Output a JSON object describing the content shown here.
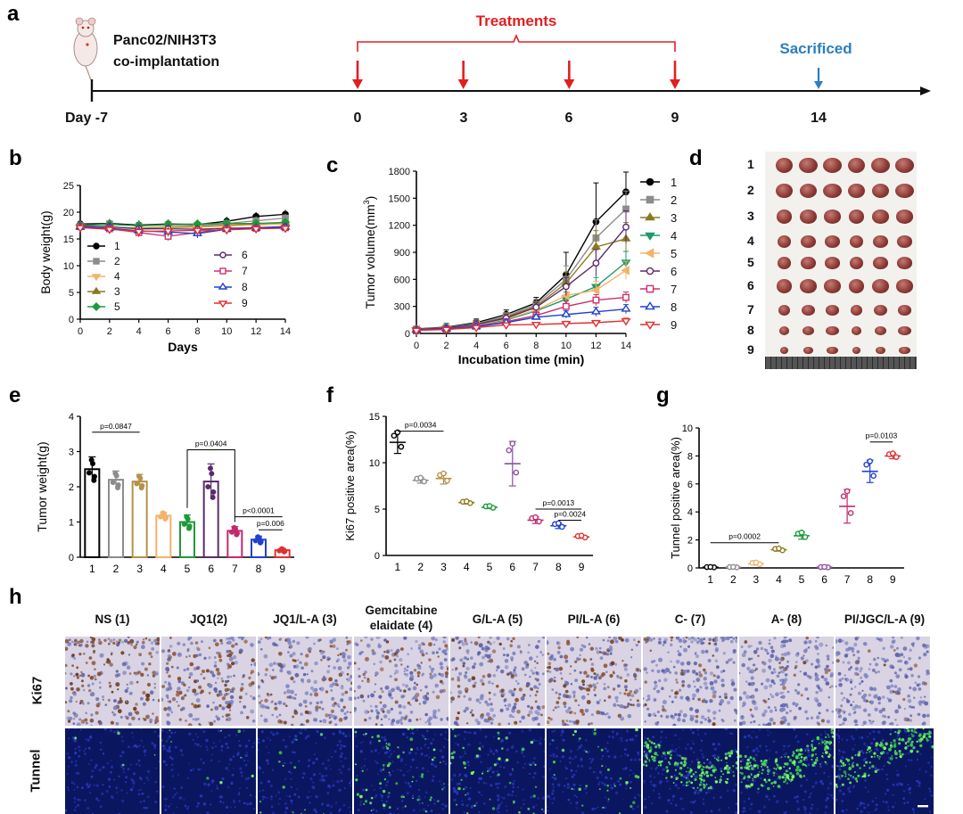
{
  "panels": {
    "a": {
      "label": "a",
      "model_text_1": "Panc02/NIH3T3",
      "model_text_2": "co-implantation",
      "treatments": "Treatments",
      "sacrificed": "Sacrificed",
      "ticks": [
        "Day -7",
        "0",
        "3",
        "6",
        "9",
        "14"
      ],
      "treatment_days": [
        0,
        3,
        6,
        9
      ],
      "sacrifice_day": 14,
      "colors": {
        "treatment": "#e02020",
        "sacrifice": "#2a7fc0",
        "axis": "#111111"
      }
    },
    "b": {
      "label": "b"
    },
    "c": {
      "label": "c"
    },
    "d": {
      "label": "d",
      "rows": [
        "1",
        "2",
        "3",
        "4",
        "5",
        "6",
        "7",
        "8",
        "9"
      ],
      "tumor_size_scale": [
        1.0,
        0.95,
        0.9,
        0.8,
        0.78,
        0.9,
        0.7,
        0.62,
        0.52
      ],
      "tumors_per_row": 6
    },
    "e": {
      "label": "e"
    },
    "f": {
      "label": "f"
    },
    "g": {
      "label": "g"
    },
    "h": {
      "label": "h",
      "columns": [
        "NS (1)",
        "JQ1(2)",
        "JQ1/L-A (3)",
        "Gemcitabine elaidate (4)",
        "G/L-A (5)",
        "PI/L-A (6)",
        "C- (7)",
        "A- (8)",
        "PI/JGC/L-A (9)"
      ],
      "col4_line1": "Gemcitabine",
      "col4_line2": "elaidate (4)",
      "rows": [
        "Ki67",
        "Tunnel"
      ],
      "ki67_brown_density": [
        0.55,
        0.45,
        0.3,
        0.25,
        0.3,
        0.45,
        0.15,
        0.12,
        0.05
      ],
      "tunnel_green_density": [
        0.01,
        0.02,
        0.03,
        0.15,
        0.12,
        0.08,
        0.45,
        0.5,
        0.4
      ]
    }
  },
  "chart_data": [
    {
      "id": "b",
      "type": "line",
      "title": "",
      "xlabel": "Days",
      "ylabel": "Body weight(g)",
      "xlim": [
        0,
        14
      ],
      "ylim": [
        0,
        25
      ],
      "xticks": [
        0,
        2,
        4,
        6,
        8,
        10,
        12,
        14
      ],
      "yticks": [
        0,
        5,
        10,
        15,
        20,
        25
      ],
      "x": [
        0,
        2,
        4,
        6,
        8,
        10,
        12,
        14
      ],
      "legend_col1": [
        "1",
        "2",
        "4",
        "3",
        "5"
      ],
      "legend_col2": [
        "6",
        "7",
        "8",
        "9"
      ],
      "series": [
        {
          "name": "1",
          "color": "#000000",
          "marker": "circle-filled",
          "values": [
            17.8,
            17.9,
            17.6,
            17.8,
            17.7,
            18.3,
            19.2,
            19.6
          ]
        },
        {
          "name": "2",
          "color": "#8c8c8c",
          "marker": "square-filled",
          "values": [
            17.5,
            17.8,
            17.4,
            17.6,
            17.5,
            17.9,
            18.4,
            18.9
          ]
        },
        {
          "name": "3",
          "color": "#8a7a1e",
          "marker": "triangle-filled",
          "values": [
            17.4,
            17.2,
            17.0,
            17.2,
            17.3,
            17.6,
            17.8,
            18.0
          ]
        },
        {
          "name": "4",
          "color": "#f2b36a",
          "marker": "triangle-down-filled",
          "values": [
            17.3,
            17.1,
            16.8,
            17.0,
            17.2,
            17.4,
            17.6,
            17.8
          ]
        },
        {
          "name": "5",
          "color": "#1d9a3a",
          "marker": "diamond-filled",
          "values": [
            17.6,
            17.7,
            17.5,
            17.7,
            17.8,
            17.9,
            17.9,
            18.1
          ]
        },
        {
          "name": "6",
          "color": "#5b2a6e",
          "marker": "circle-open",
          "values": [
            17.4,
            17.3,
            16.9,
            16.9,
            16.8,
            17.0,
            17.1,
            17.3
          ]
        },
        {
          "name": "7",
          "color": "#d0306a",
          "marker": "square-open",
          "values": [
            17.3,
            16.9,
            16.2,
            15.5,
            16.2,
            16.9,
            17.0,
            17.1
          ]
        },
        {
          "name": "8",
          "color": "#2040d0",
          "marker": "triangle-open",
          "values": [
            17.2,
            17.0,
            16.5,
            16.3,
            16.0,
            16.8,
            17.0,
            17.2
          ]
        },
        {
          "name": "9",
          "color": "#e03030",
          "marker": "triangle-down-open",
          "values": [
            17.1,
            16.8,
            16.4,
            16.5,
            16.6,
            16.7,
            16.9,
            17.0
          ]
        }
      ]
    },
    {
      "id": "c",
      "type": "line",
      "title": "",
      "xlabel": "Incubation time (min)",
      "ylabel_base": "Tumor volume(mm",
      "ylabel_sup": "3",
      "ylabel_end": ")",
      "xlim": [
        0,
        14
      ],
      "ylim": [
        0,
        1800
      ],
      "xticks": [
        0,
        2,
        4,
        6,
        8,
        10,
        12,
        14
      ],
      "yticks": [
        0,
        300,
        600,
        900,
        1200,
        1500,
        1800
      ],
      "x": [
        0,
        2,
        4,
        6,
        8,
        10,
        12,
        14
      ],
      "series": [
        {
          "name": "1",
          "color": "#000000",
          "marker": "circle-filled",
          "values": [
            50,
            70,
            120,
            210,
            340,
            650,
            1240,
            1570
          ],
          "err": [
            20,
            30,
            40,
            50,
            60,
            250,
            430,
            220
          ]
        },
        {
          "name": "2",
          "color": "#8c8c8c",
          "marker": "square-filled",
          "values": [
            48,
            65,
            110,
            190,
            320,
            600,
            1060,
            1380
          ],
          "err": [
            20,
            30,
            40,
            40,
            60,
            150,
            200,
            200
          ]
        },
        {
          "name": "3",
          "color": "#8a7a1e",
          "marker": "triangle-filled",
          "values": [
            45,
            60,
            100,
            180,
            300,
            560,
            960,
            1050
          ],
          "err": [
            20,
            30,
            40,
            40,
            50,
            120,
            180,
            180
          ]
        },
        {
          "name": "4",
          "color": "#1d9a6a",
          "marker": "triangle-down-filled",
          "values": [
            40,
            55,
            90,
            150,
            250,
            380,
            520,
            790
          ],
          "err": [
            15,
            60,
            50,
            40,
            50,
            80,
            100,
            120
          ]
        },
        {
          "name": "5",
          "color": "#f2b36a",
          "marker": "triangle-left-filled",
          "values": [
            42,
            58,
            95,
            160,
            260,
            420,
            480,
            700
          ],
          "err": [
            15,
            25,
            40,
            40,
            50,
            80,
            100,
            100
          ]
        },
        {
          "name": "6",
          "color": "#5b2a6e",
          "marker": "circle-open",
          "values": [
            44,
            60,
            100,
            170,
            290,
            520,
            780,
            1180
          ],
          "err": [
            15,
            25,
            40,
            40,
            50,
            100,
            150,
            180
          ]
        },
        {
          "name": "7",
          "color": "#d0306a",
          "marker": "square-open",
          "values": [
            38,
            50,
            80,
            130,
            200,
            300,
            370,
            400
          ],
          "err": [
            10,
            20,
            30,
            30,
            40,
            60,
            60,
            60
          ]
        },
        {
          "name": "8",
          "color": "#2040d0",
          "marker": "triangle-open",
          "values": [
            36,
            48,
            75,
            120,
            180,
            210,
            240,
            270
          ],
          "err": [
            10,
            20,
            25,
            30,
            30,
            40,
            50,
            50
          ]
        },
        {
          "name": "9",
          "color": "#e03030",
          "marker": "triangle-down-open",
          "values": [
            34,
            44,
            65,
            95,
            100,
            110,
            120,
            140
          ],
          "err": [
            10,
            15,
            20,
            20,
            20,
            25,
            25,
            30
          ]
        }
      ]
    },
    {
      "id": "e",
      "type": "bar",
      "title": "",
      "xlabel": "",
      "ylabel": "Tumor weight(g)",
      "categories": [
        "1",
        "2",
        "3",
        "4",
        "5",
        "6",
        "7",
        "8",
        "9"
      ],
      "values": [
        2.5,
        2.2,
        2.15,
        1.18,
        1.0,
        2.15,
        0.75,
        0.5,
        0.2
      ],
      "errors": [
        0.35,
        0.25,
        0.2,
        0.1,
        0.2,
        0.5,
        0.12,
        0.1,
        0.05
      ],
      "colors": [
        "#000000",
        "#8c8c8c",
        "#b5924a",
        "#f2b36a",
        "#1d9a3a",
        "#5b2a6e",
        "#c22a6e",
        "#2040d0",
        "#e03030"
      ],
      "ylim": [
        0,
        4
      ],
      "yticks": [
        0,
        1,
        2,
        3,
        4
      ],
      "annotations": [
        "p=0.0847",
        "p=0.0404",
        "p<0.0001",
        "p=0.006"
      ]
    },
    {
      "id": "f",
      "type": "scatter",
      "title": "",
      "xlabel": "",
      "ylabel": "Ki67 positive area(%)",
      "categories": [
        "1",
        "2",
        "3",
        "4",
        "5",
        "6",
        "7",
        "8",
        "9"
      ],
      "values": [
        12.2,
        8.1,
        8.3,
        5.7,
        5.2,
        9.9,
        3.8,
        3.2,
        2.0
      ],
      "errors": [
        1.2,
        0.3,
        0.6,
        0.15,
        0.15,
        2.4,
        0.35,
        0.3,
        0.15
      ],
      "colors": [
        "#000000",
        "#8c8c8c",
        "#b5924a",
        "#8a7a1e",
        "#1d9a3a",
        "#8c4fa0",
        "#c22a6e",
        "#2040d0",
        "#e03030"
      ],
      "ylim": [
        0,
        15
      ],
      "yticks": [
        0,
        5,
        10,
        15
      ],
      "annotations": [
        "p=0.0034",
        "p=0.0013",
        "p=0.0024"
      ]
    },
    {
      "id": "g",
      "type": "scatter",
      "title": "",
      "xlabel": "",
      "ylabel": "Tunnel positive area(%)",
      "categories": [
        "1",
        "2",
        "3",
        "4",
        "5",
        "6",
        "7",
        "8",
        "9"
      ],
      "values": [
        0.05,
        0.05,
        0.3,
        1.3,
        2.3,
        0.05,
        4.4,
        6.9,
        8.0
      ],
      "errors": [
        0.02,
        0.02,
        0.1,
        0.1,
        0.25,
        0.02,
        1.2,
        0.8,
        0.2
      ],
      "colors": [
        "#000000",
        "#8c8c8c",
        "#f2b36a",
        "#8a7a1e",
        "#1d9a3a",
        "#8c4fa0",
        "#c22a6e",
        "#2040d0",
        "#e03030"
      ],
      "ylim": [
        0,
        10
      ],
      "yticks": [
        0,
        2,
        4,
        6,
        8,
        10
      ],
      "annotations": [
        "p=0.0002",
        "p=0.0103"
      ]
    }
  ]
}
